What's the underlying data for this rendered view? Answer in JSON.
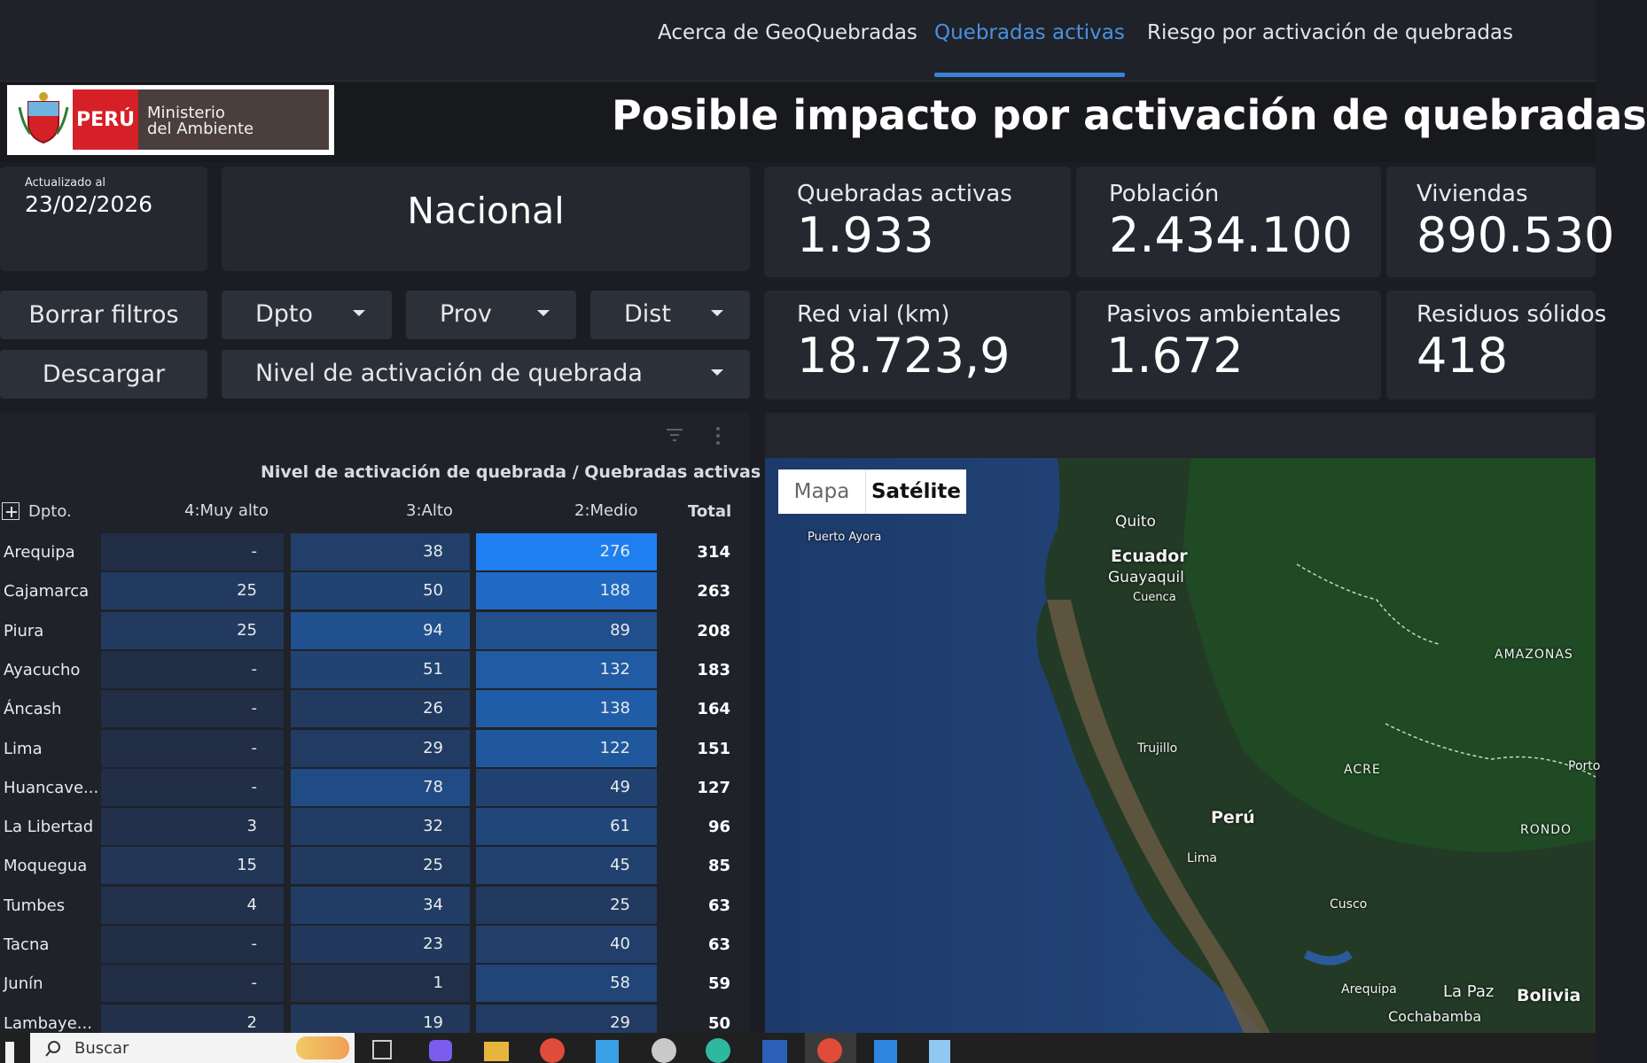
{
  "nav": {
    "tabs": [
      {
        "label": "Acerca de GeoQuebradas"
      },
      {
        "label": "Quebradas activas"
      },
      {
        "label": "Riesgo por activación de quebradas"
      }
    ]
  },
  "logo": {
    "country": "PERÚ",
    "ministry_line1": "Ministerio",
    "ministry_line2": "del Ambiente"
  },
  "title": "Posible impacto por activación de quebradas",
  "updated": {
    "label": "Actualizado al",
    "date": "23/02/2026"
  },
  "scope": "Nacional",
  "kpis": [
    {
      "label": "Quebradas activas",
      "value": "1.933"
    },
    {
      "label": "Población",
      "value": "2.434.100"
    },
    {
      "label": "Viviendas",
      "value": "890.530"
    },
    {
      "label": "Red vial (km)",
      "value": "18.723,9"
    },
    {
      "label": "Pasivos ambientales",
      "value": "1.672"
    },
    {
      "label": "Residuos sólidos",
      "value": "418"
    }
  ],
  "buttons": {
    "clear": "Borrar filtros",
    "download": "Descargar"
  },
  "filters": {
    "dpto": "Dpto",
    "prov": "Prov",
    "dist": "Dist",
    "nivel": "Nivel de activación de quebrada"
  },
  "table": {
    "title": "Nivel de activación de quebrada / Quebradas activas",
    "headers": {
      "dpto": "Dpto.",
      "muyalto": "4:Muy alto",
      "alto": "3:Alto",
      "medio": "2:Medio",
      "total": "Total"
    },
    "rows": [
      {
        "name": "Arequipa",
        "muyalto": "-",
        "alto": "38",
        "medio": "276",
        "total": "314"
      },
      {
        "name": "Cajamarca",
        "muyalto": "25",
        "alto": "50",
        "medio": "188",
        "total": "263"
      },
      {
        "name": "Piura",
        "muyalto": "25",
        "alto": "94",
        "medio": "89",
        "total": "208"
      },
      {
        "name": "Ayacucho",
        "muyalto": "-",
        "alto": "51",
        "medio": "132",
        "total": "183"
      },
      {
        "name": "Áncash",
        "muyalto": "-",
        "alto": "26",
        "medio": "138",
        "total": "164"
      },
      {
        "name": "Lima",
        "muyalto": "-",
        "alto": "29",
        "medio": "122",
        "total": "151"
      },
      {
        "name": "Huancave...",
        "muyalto": "-",
        "alto": "78",
        "medio": "49",
        "total": "127"
      },
      {
        "name": "La Libertad",
        "muyalto": "3",
        "alto": "32",
        "medio": "61",
        "total": "96"
      },
      {
        "name": "Moquegua",
        "muyalto": "15",
        "alto": "25",
        "medio": "45",
        "total": "85"
      },
      {
        "name": "Tumbes",
        "muyalto": "4",
        "alto": "34",
        "medio": "25",
        "total": "63"
      },
      {
        "name": "Tacna",
        "muyalto": "-",
        "alto": "23",
        "medio": "40",
        "total": "63"
      },
      {
        "name": "Junín",
        "muyalto": "-",
        "alto": "1",
        "medio": "58",
        "total": "59"
      },
      {
        "name": "Lambaye...",
        "muyalto": "2",
        "alto": "19",
        "medio": "29",
        "total": "50"
      }
    ]
  },
  "map": {
    "btn_map": "Mapa",
    "btn_sat": "Satélite",
    "labels": {
      "quito": "Quito",
      "puerto_ayora": "Puerto Ayora",
      "ecuador": "Ecuador",
      "guayaquil": "Guayaquil",
      "cuenca": "Cuenca",
      "amazonas": "AMAZONAS",
      "trujillo": "Trujillo",
      "acre": "ACRE",
      "porto": "Porto",
      "peru": "Perú",
      "lima": "Lima",
      "rondonia": "RONDO",
      "cusco": "Cusco",
      "arequipa": "Arequipa",
      "lapaz": "La Paz",
      "bolivia": "Bolivia",
      "cochabamba": "Cochabamba"
    }
  },
  "taskbar": {
    "search_placeholder": "Buscar"
  },
  "colors": {
    "accent": "#4a90e2",
    "heat_max": "#1f7ff0",
    "panel": "#25282f"
  }
}
